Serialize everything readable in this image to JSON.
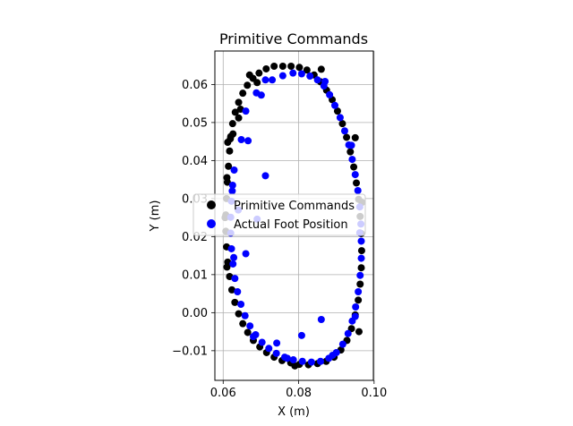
{
  "chart_data": {
    "type": "scatter",
    "title": "Primitive Commands",
    "xlabel": "X (m)",
    "ylabel": "Y (m)",
    "xlim": [
      0.0578,
      0.0998
    ],
    "ylim": [
      -0.0178,
      0.0688
    ],
    "xticks": [
      0.06,
      0.08,
      0.1
    ],
    "xtick_labels": [
      "0.06",
      "0.08",
      "0.10"
    ],
    "yticks": [
      -0.01,
      0.0,
      0.01,
      0.02,
      0.03,
      0.04,
      0.05,
      0.06
    ],
    "ytick_labels": [
      "−0.01",
      "0.00",
      "0.01",
      "0.02",
      "0.03",
      "0.04",
      "0.05",
      "0.06"
    ],
    "grid": true,
    "legend": {
      "placement": "center",
      "entries": [
        "Primitive Commands",
        "Actual Foot Position"
      ]
    },
    "series": [
      {
        "name": "Primitive Commands",
        "color": "#000000",
        "points": [
          [
            0.0735,
            0.0648
          ],
          [
            0.0758,
            0.0648
          ],
          [
            0.078,
            0.0648
          ],
          [
            0.0802,
            0.0645
          ],
          [
            0.0822,
            0.0638
          ],
          [
            0.0841,
            0.0625
          ],
          [
            0.0858,
            0.0607
          ],
          [
            0.0874,
            0.0585
          ],
          [
            0.0889,
            0.056
          ],
          [
            0.0903,
            0.053
          ],
          [
            0.0916,
            0.0497
          ],
          [
            0.0927,
            0.0461
          ],
          [
            0.0937,
            0.0423
          ],
          [
            0.0946,
            0.0383
          ],
          [
            0.0953,
            0.0341
          ],
          [
            0.0959,
            0.0298
          ],
          [
            0.0963,
            0.0253
          ],
          [
            0.0966,
            0.0208
          ],
          [
            0.0967,
            0.0163
          ],
          [
            0.0966,
            0.0118
          ],
          [
            0.0963,
            0.0075
          ],
          [
            0.0958,
            0.0033
          ],
          [
            0.095,
            -0.0006
          ],
          [
            0.094,
            -0.0042
          ],
          [
            0.0928,
            -0.0073
          ],
          [
            0.0912,
            -0.0098
          ],
          [
            0.0894,
            -0.0117
          ],
          [
            0.0873,
            -0.0128
          ],
          [
            0.085,
            -0.0134
          ],
          [
            0.0826,
            -0.0137
          ],
          [
            0.0802,
            -0.0136
          ],
          [
            0.0779,
            -0.0132
          ],
          [
            0.0756,
            -0.0126
          ],
          [
            0.0735,
            -0.0117
          ],
          [
            0.0715,
            -0.0105
          ],
          [
            0.0697,
            -0.009
          ],
          [
            0.068,
            -0.0073
          ],
          [
            0.0665,
            -0.0052
          ],
          [
            0.0652,
            -0.0029
          ],
          [
            0.0641,
            -0.0003
          ],
          [
            0.0631,
            0.0027
          ],
          [
            0.0623,
            0.006
          ],
          [
            0.0617,
            0.0095
          ],
          [
            0.0612,
            0.0133
          ],
          [
            0.0609,
            0.0173
          ],
          [
            0.0607,
            0.0214
          ],
          [
            0.0607,
            0.0257
          ],
          [
            0.0609,
            0.03
          ],
          [
            0.0611,
            0.0343
          ],
          [
            0.0614,
            0.0385
          ],
          [
            0.0617,
            0.0425
          ],
          [
            0.062,
            0.0463
          ],
          [
            0.0625,
            0.0497
          ],
          [
            0.0632,
            0.0527
          ],
          [
            0.0641,
            0.0553
          ],
          [
            0.0652,
            0.0577
          ],
          [
            0.0664,
            0.0598
          ],
          [
            0.0679,
            0.0616
          ],
          [
            0.0695,
            0.063
          ],
          [
            0.0714,
            0.0641
          ],
          [
            0.0646,
            0.0535
          ],
          [
            0.0641,
            0.0512
          ],
          [
            0.0626,
            0.047
          ],
          [
            0.0619,
            0.0457
          ],
          [
            0.0612,
            0.0448
          ],
          [
            0.067,
            0.0625
          ],
          [
            0.069,
            0.0605
          ],
          [
            0.061,
            0.0355
          ],
          [
            0.0605,
            0.025
          ],
          [
            0.061,
            0.012
          ],
          [
            0.086,
            0.064
          ],
          [
            0.095,
            0.046
          ],
          [
            0.0968,
            0.029
          ],
          [
            0.096,
            -0.005
          ],
          [
            0.079,
            -0.014
          ]
        ]
      },
      {
        "name": "Actual Foot Position",
        "color": "#0000ff",
        "points": [
          [
            0.0712,
            0.0612
          ],
          [
            0.0758,
            0.0623
          ],
          [
            0.0785,
            0.063
          ],
          [
            0.0808,
            0.0628
          ],
          [
            0.083,
            0.0622
          ],
          [
            0.085,
            0.0612
          ],
          [
            0.0867,
            0.0596
          ],
          [
            0.0882,
            0.0573
          ],
          [
            0.0896,
            0.0545
          ],
          [
            0.091,
            0.0513
          ],
          [
            0.0922,
            0.0478
          ],
          [
            0.0933,
            0.0441
          ],
          [
            0.0942,
            0.0403
          ],
          [
            0.095,
            0.0363
          ],
          [
            0.0957,
            0.0321
          ],
          [
            0.0962,
            0.0278
          ],
          [
            0.0965,
            0.0233
          ],
          [
            0.0966,
            0.0188
          ],
          [
            0.0966,
            0.0143
          ],
          [
            0.0963,
            0.0098
          ],
          [
            0.0958,
            0.0055
          ],
          [
            0.0951,
            0.0015
          ],
          [
            0.0942,
            -0.0022
          ],
          [
            0.0931,
            -0.0055
          ],
          [
            0.0917,
            -0.0083
          ],
          [
            0.09,
            -0.0105
          ],
          [
            0.088,
            -0.012
          ],
          [
            0.0858,
            -0.0128
          ],
          [
            0.0834,
            -0.013
          ],
          [
            0.081,
            -0.0128
          ],
          [
            0.0786,
            -0.0124
          ],
          [
            0.0763,
            -0.0117
          ],
          [
            0.0741,
            -0.0107
          ],
          [
            0.0721,
            -0.0094
          ],
          [
            0.0703,
            -0.0078
          ],
          [
            0.0686,
            -0.0058
          ],
          [
            0.0671,
            -0.0035
          ],
          [
            0.0658,
            -0.0008
          ],
          [
            0.0647,
            0.0022
          ],
          [
            0.0638,
            0.0055
          ],
          [
            0.0631,
            0.009
          ],
          [
            0.0626,
            0.0128
          ],
          [
            0.0622,
            0.0168
          ],
          [
            0.062,
            0.0209
          ],
          [
            0.062,
            0.0251
          ],
          [
            0.0622,
            0.0293
          ],
          [
            0.0625,
            0.0335
          ],
          [
            0.0629,
            0.0375
          ],
          [
            0.0648,
            0.0455
          ],
          [
            0.066,
            0.053
          ],
          [
            0.0688,
            0.0578
          ],
          [
            0.0701,
            0.0572
          ],
          [
            0.0666,
            0.0452
          ],
          [
            0.066,
            0.0155
          ],
          [
            0.0712,
            0.036
          ],
          [
            0.069,
            0.0246
          ],
          [
            0.064,
            0.027
          ],
          [
            0.086,
            -0.0018
          ],
          [
            0.0808,
            -0.006
          ],
          [
            0.0742,
            -0.008
          ],
          [
            0.073,
            0.0612
          ],
          [
            0.087,
            0.0608
          ],
          [
            0.094,
            0.044
          ],
          [
            0.0962,
            0.021
          ],
          [
            0.095,
            -0.001
          ],
          [
            0.089,
            -0.0112
          ],
          [
            0.077,
            -0.012
          ],
          [
            0.068,
            -0.0063
          ],
          [
            0.0628,
            0.0145
          ],
          [
            0.0624,
            0.032
          ]
        ]
      }
    ]
  }
}
